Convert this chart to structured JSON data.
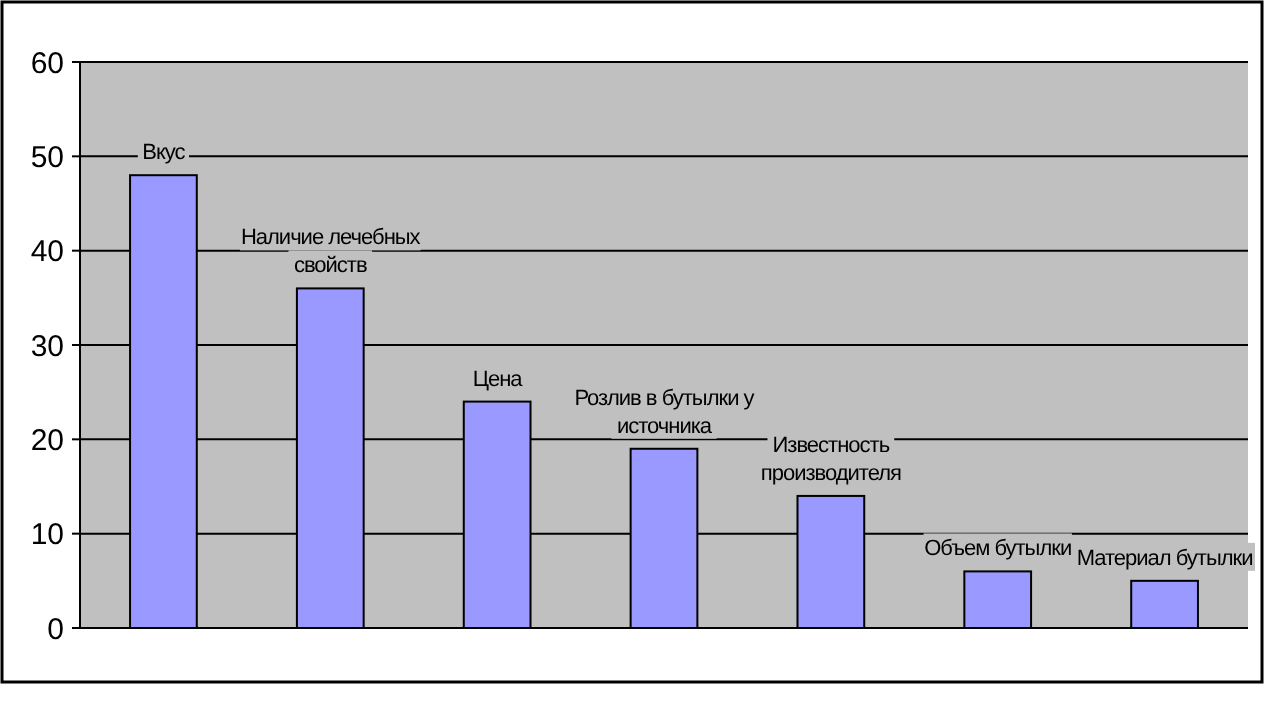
{
  "chart_data": {
    "type": "bar",
    "categories": [
      "Вкус",
      "Наличие лечебных свойств",
      "Цена",
      "Розлив в бутылки у источника",
      "Известность производителя",
      "Объем бутылки",
      "Материал бутылки"
    ],
    "values": [
      48,
      36,
      24,
      19,
      14,
      6,
      5
    ],
    "color": "#9999ff",
    "ylim": [
      0,
      60
    ],
    "yticks": [
      0,
      10,
      20,
      30,
      40,
      50,
      60
    ],
    "grid": "y"
  }
}
